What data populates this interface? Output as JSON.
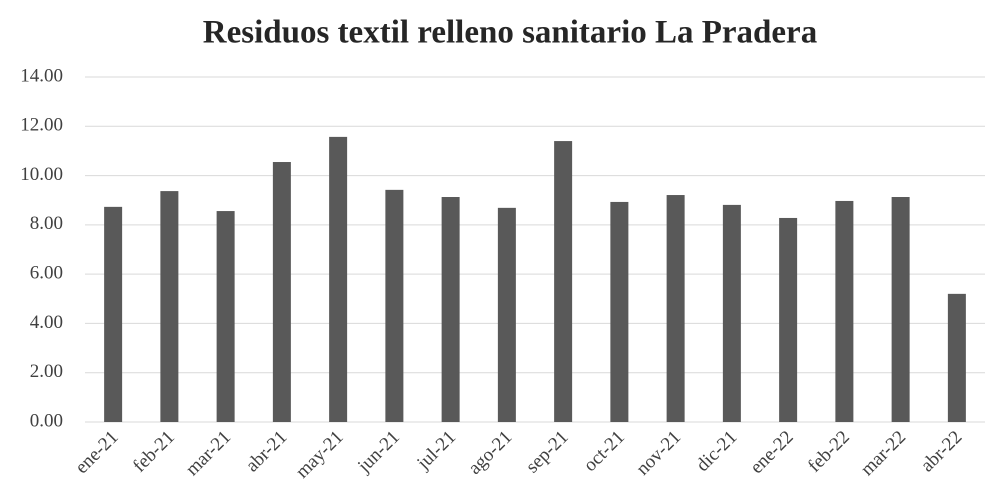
{
  "chart_data": {
    "type": "bar",
    "title": "Residuos textil relleno sanitario La Pradera",
    "categories": [
      "ene-21",
      "feb-21",
      "mar-21",
      "abr-21",
      "may-21",
      "jun-21",
      "jul-21",
      "ago-21",
      "sep-21",
      "oct-21",
      "nov-21",
      "dic-21",
      "ene-22",
      "feb-22",
      "mar-22",
      "abr-22"
    ],
    "values": [
      8.73,
      9.37,
      8.56,
      10.55,
      11.57,
      9.42,
      9.13,
      8.69,
      11.4,
      8.93,
      9.21,
      8.81,
      8.28,
      8.97,
      9.13,
      5.2
    ],
    "color": "#595959",
    "ylim": [
      0,
      14
    ],
    "yticks": [
      {
        "value": 0,
        "label": "0.00"
      },
      {
        "value": 2,
        "label": "2.00"
      },
      {
        "value": 4,
        "label": "4.00"
      },
      {
        "value": 6,
        "label": "6.00"
      },
      {
        "value": 8,
        "label": "8.00"
      },
      {
        "value": 10,
        "label": "10.00"
      },
      {
        "value": 12,
        "label": "12.00"
      },
      {
        "value": 14,
        "label": "14.00"
      }
    ],
    "grid": true
  }
}
